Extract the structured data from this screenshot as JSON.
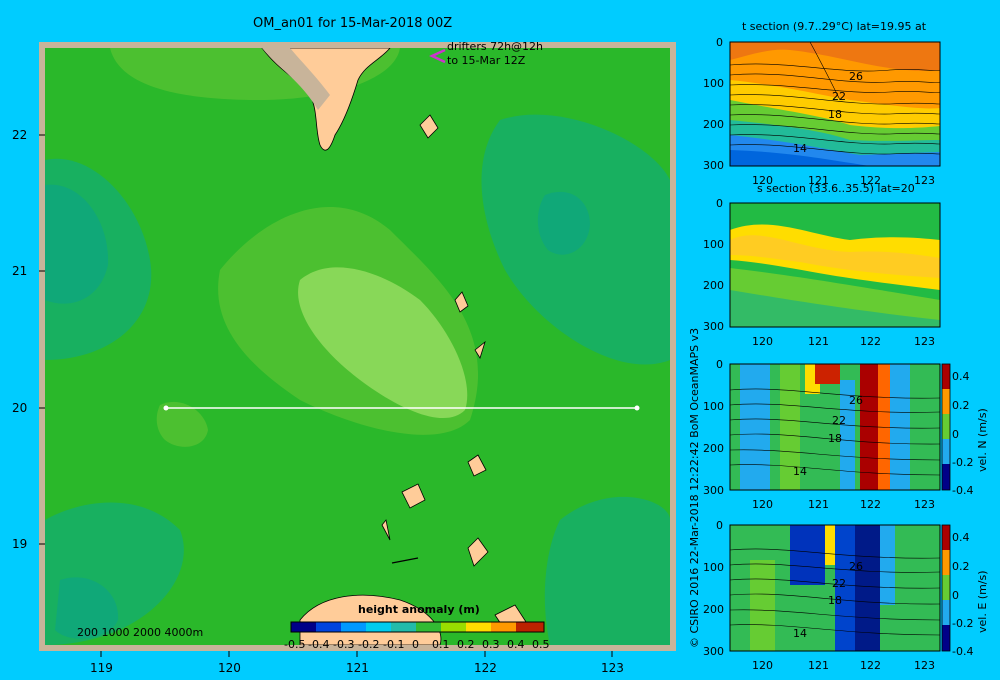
{
  "map": {
    "title": "OM_an01 for 15-Mar-2018 00Z",
    "lat_ticks": [
      "22",
      "21",
      "20",
      "19"
    ],
    "lon_ticks": [
      "119",
      "120",
      "121",
      "122",
      "123"
    ],
    "drifters_line1": "drifters 72h@12h",
    "drifters_line2": "to 15-Mar 12Z",
    "depth_legend": "200  1000  2000  4000m",
    "colorbar_title": "height anomaly (m)",
    "colorbar_ticks": [
      "-0.5",
      "-0.4",
      "-0.3",
      "-0.2",
      "-0.1",
      "0",
      "0.1",
      "0.2",
      "0.3",
      "0.4",
      "0.5"
    ],
    "section_line": {
      "lat": 20,
      "lon_start": 119.5,
      "lon_end": 123.2
    },
    "colors": {
      "ocean_main": "#2ab82a",
      "ocean_light": "#66cc33",
      "ocean_teal": "#10b070",
      "land": "#ffcc99",
      "frame": "#c8b49a"
    }
  },
  "panels": [
    {
      "id": "t-section",
      "title": "t section (9.7..29°C) lat=19.95 at",
      "y_ticks": [
        "0",
        "100",
        "200",
        "300"
      ],
      "x_ticks": [
        "120",
        "121",
        "122",
        "123"
      ],
      "contour_labels": [
        "26",
        "22",
        "18",
        "14"
      ]
    },
    {
      "id": "s-section",
      "title": "s section (33.6..35.5) lat=20",
      "y_ticks": [
        "0",
        "100",
        "200",
        "300"
      ],
      "x_ticks": [
        "120",
        "121",
        "122",
        "123"
      ],
      "contour_labels": []
    },
    {
      "id": "vel-n",
      "title": "",
      "y_ticks": [
        "0",
        "100",
        "200",
        "300"
      ],
      "x_ticks": [
        "120",
        "121",
        "122",
        "123"
      ],
      "contour_labels": [
        "26",
        "22",
        "18",
        "14"
      ],
      "colorbar_label": "vel. N (m/s)",
      "colorbar_ticks": [
        "0.4",
        "0.2",
        "0",
        "-0.2",
        "-0.4"
      ]
    },
    {
      "id": "vel-e",
      "title": "",
      "y_ticks": [
        "0",
        "100",
        "200",
        "300"
      ],
      "x_ticks": [
        "120",
        "121",
        "122",
        "123"
      ],
      "contour_labels": [
        "26",
        "22",
        "18",
        "14"
      ],
      "colorbar_label": "vel. E (m/s)",
      "colorbar_ticks": [
        "0.4",
        "0.2",
        "0",
        "-0.2",
        "-0.4"
      ]
    }
  ],
  "credit": "© CSIRO 2016   22-Mar-2018 12:22:42 BoM OceanMAPS v3"
}
